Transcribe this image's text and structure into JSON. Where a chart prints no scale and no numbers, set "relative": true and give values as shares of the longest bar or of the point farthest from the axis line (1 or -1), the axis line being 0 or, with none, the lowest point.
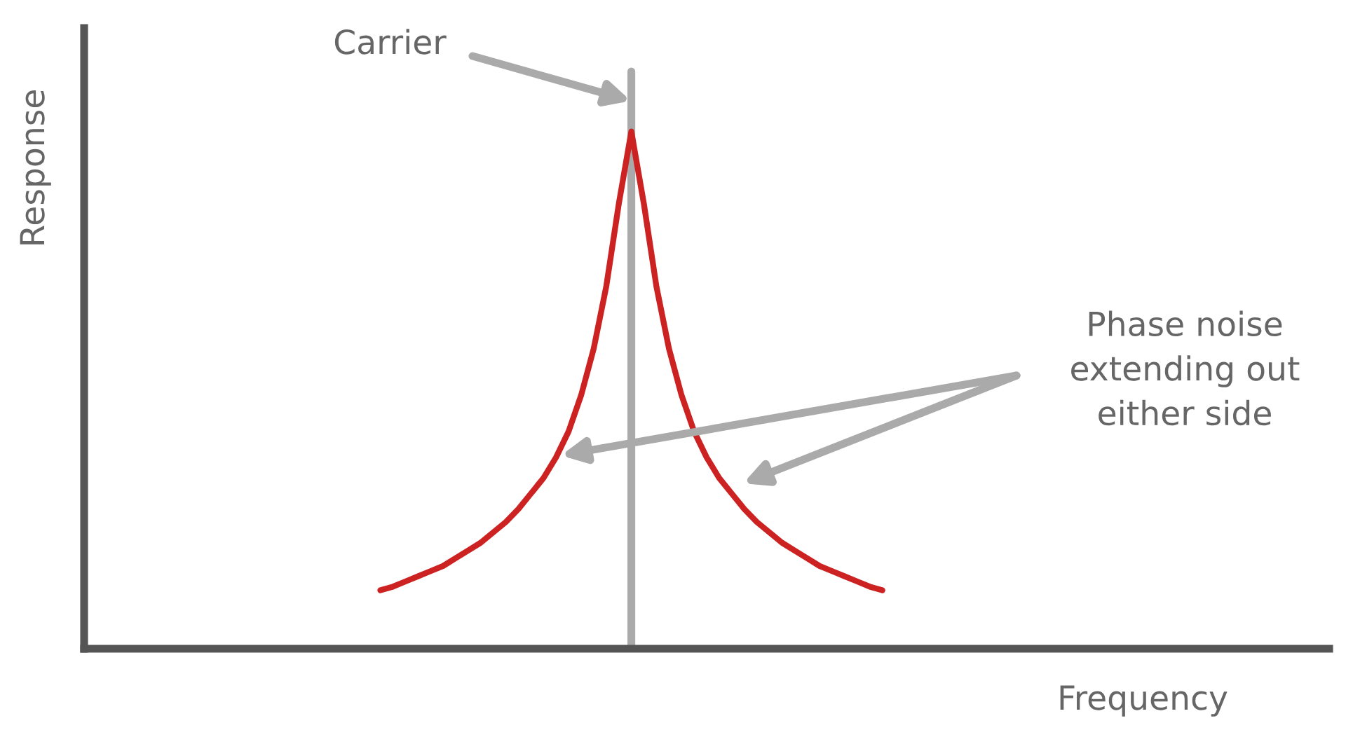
{
  "chart_data": {
    "type": "line",
    "relative": true,
    "tick_labels": false,
    "categories": [
      null,
      null,
      null,
      null,
      null,
      null,
      null,
      null,
      null,
      null,
      null,
      null,
      null,
      null,
      null,
      null,
      null,
      null,
      null,
      null,
      null,
      null,
      null,
      null,
      null,
      null,
      null,
      null,
      null,
      null,
      null,
      null,
      null,
      null,
      null,
      null,
      null,
      null,
      null,
      null,
      null
    ],
    "series": [
      {
        "color": "#cc2222",
        "values": [
          0.113,
          0.12,
          0.13,
          0.14,
          0.15,
          0.16,
          0.175,
          0.19,
          0.205,
          0.225,
          0.245,
          0.27,
          0.3,
          0.33,
          0.37,
          0.42,
          0.49,
          0.58,
          0.7,
          0.86,
          1.0,
          0.86,
          0.7,
          0.58,
          0.49,
          0.42,
          0.37,
          0.33,
          0.3,
          0.27,
          0.245,
          0.225,
          0.205,
          0.19,
          0.175,
          0.16,
          0.15,
          0.14,
          0.13,
          0.12,
          0.113
        ]
      }
    ],
    "annotations": [
      "Carrier",
      "Phase noise\nextending out\neither side",
      "Frequency",
      "Response"
    ]
  }
}
